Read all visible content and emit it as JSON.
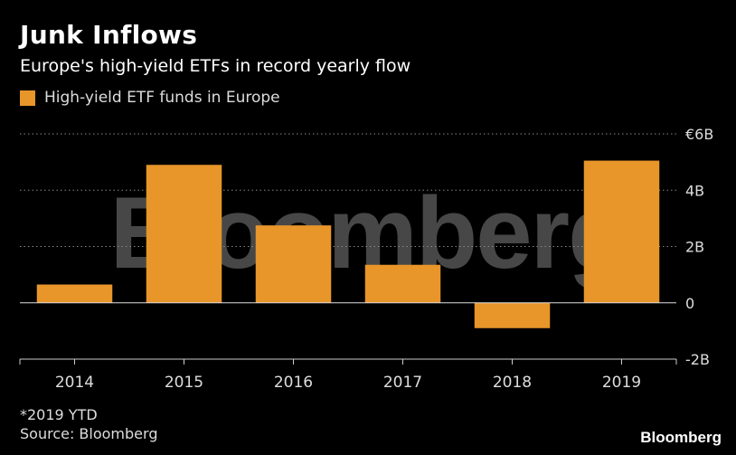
{
  "header": {
    "title": "Junk Inflows",
    "subtitle": "Europe's high-yield ETFs in record yearly flow"
  },
  "legend": {
    "label": "High-yield ETF funds in Europe",
    "color": "#e8952a"
  },
  "watermark": "Bloomberg",
  "footer": {
    "footnote": "*2019 YTD",
    "source": "Source: Bloomberg",
    "brand": "Bloomberg"
  },
  "chart_data": {
    "type": "bar",
    "categories": [
      "2014",
      "2015",
      "2016",
      "2017",
      "2018",
      "2019"
    ],
    "values": [
      0.65,
      4.9,
      2.75,
      1.35,
      -0.9,
      5.05
    ],
    "ylim": [
      -2,
      6
    ],
    "yticks": [
      6,
      4,
      2,
      0,
      -2
    ],
    "ytick_labels": [
      "€6B",
      "4B",
      "2B",
      "0",
      "-2B"
    ],
    "grid": true,
    "legend_position": "top-left",
    "colors": {
      "bar": "#e8952a",
      "grid": "#888888",
      "axis": "#cccccc"
    }
  }
}
